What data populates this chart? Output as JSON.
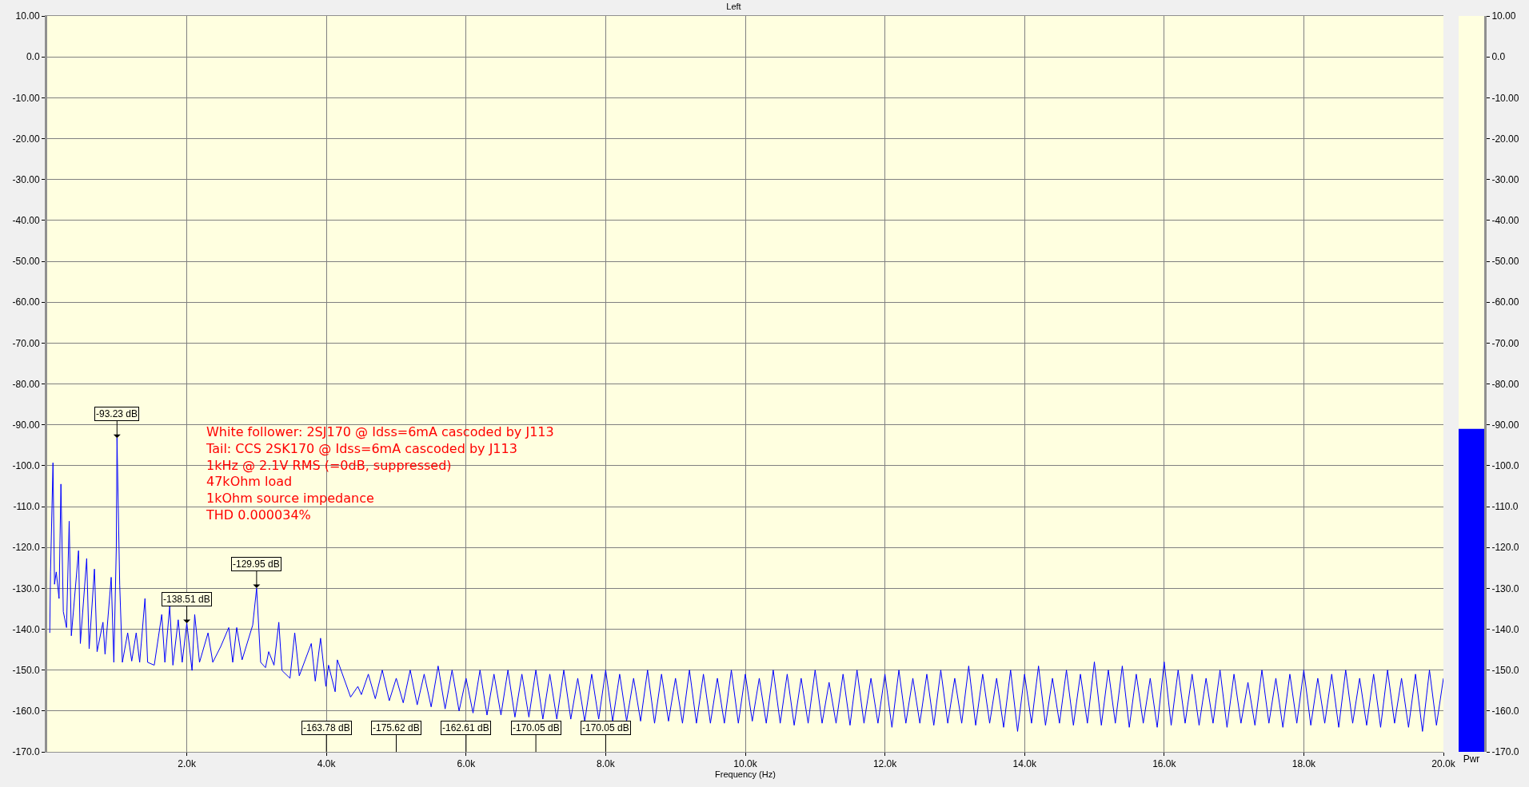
{
  "chart_data": [
    {
      "type": "line",
      "title": "Left",
      "xlabel": "Frequency (Hz)",
      "grid": true,
      "xlim": [
        0,
        20000
      ],
      "xticks": [
        {
          "value": 2000,
          "label": "2.0k"
        },
        {
          "value": 4000,
          "label": "4.0k"
        },
        {
          "value": 6000,
          "label": "6.0k"
        },
        {
          "value": 8000,
          "label": "8.0k"
        },
        {
          "value": 10000,
          "label": "10.0k"
        },
        {
          "value": 12000,
          "label": "12.0k"
        },
        {
          "value": 14000,
          "label": "14.0k"
        },
        {
          "value": 16000,
          "label": "16.0k"
        },
        {
          "value": 18000,
          "label": "18.0k"
        },
        {
          "value": 20000,
          "label": "20.0k"
        }
      ],
      "ylim": [
        -170,
        10
      ],
      "yticks": [
        {
          "value": 10,
          "label": "10.00"
        },
        {
          "value": 0,
          "label": "0.0"
        },
        {
          "value": -10,
          "label": "-10.00"
        },
        {
          "value": -20,
          "label": "-20.00"
        },
        {
          "value": -30,
          "label": "-30.00"
        },
        {
          "value": -40,
          "label": "-40.00"
        },
        {
          "value": -50,
          "label": "-50.00"
        },
        {
          "value": -60,
          "label": "-60.00"
        },
        {
          "value": -70,
          "label": "-70.00"
        },
        {
          "value": -80,
          "label": "-80.00"
        },
        {
          "value": -90,
          "label": "-90.00"
        },
        {
          "value": -100,
          "label": "-100.0"
        },
        {
          "value": -110,
          "label": "-110.0"
        },
        {
          "value": -120,
          "label": "-120.0"
        },
        {
          "value": -130,
          "label": "-130.0"
        },
        {
          "value": -140,
          "label": "-140.0"
        },
        {
          "value": -150,
          "label": "-150.0"
        },
        {
          "value": -160,
          "label": "-160.0"
        },
        {
          "value": -170,
          "label": "-170.0"
        }
      ],
      "annotations": [
        "White follower: 2SJ170 @ Idss=6mA cascoded by J113\nTail: CCS 2SK170 @ Idss=6mA cascoded by J113\n1kHz @ 2.1V RMS (=0dB, suppressed)\n47kOhm load\n1kOhm source impedance\nTHD 0.000034%",
        {
          "text": "-93.23 dB",
          "x": 1000,
          "y": -93.23
        },
        {
          "text": "-138.51 dB",
          "x": 2000,
          "y": -138.51
        },
        {
          "text": "-129.95 dB",
          "x": 3000,
          "y": -129.95
        },
        {
          "text": "-163.78 dB",
          "x": 4000
        },
        {
          "text": "-175.62 dB",
          "x": 5000
        },
        {
          "text": "-162.61 dB",
          "x": 6000
        },
        {
          "text": "-170.05 dB",
          "x": 7000
        },
        {
          "text": "-170.05 dB",
          "x": 8000
        }
      ],
      "series": [
        {
          "color": "#0000ff",
          "x": [
            37,
            48,
            83,
            105,
            130,
            170,
            197,
            231,
            277,
            315,
            346,
            449,
            475,
            566,
            601,
            677,
            715,
            799,
            829,
            917,
            955,
            990,
            1000,
            1039,
            1077,
            1153,
            1211,
            1275,
            1325,
            1401,
            1439,
            1534,
            1641,
            1686,
            1755,
            1801,
            1877,
            1934,
            2000,
            2075,
            2113,
            2182,
            2304,
            2372,
            2487,
            2601,
            2658,
            2715,
            2792,
            2944,
            3000,
            3058,
            3127,
            3173,
            3249,
            3318,
            3363,
            3478,
            3546,
            3611,
            3783,
            3840,
            3916,
            3992,
            4030,
            4125,
            4156,
            4346,
            4450,
            4500,
            4600,
            4700,
            4800,
            4900,
            5000,
            5100,
            5200,
            5300,
            5400,
            5500,
            5600,
            5700,
            5800,
            5900,
            6000,
            6100,
            6200,
            6300,
            6400,
            6500,
            6600,
            6700,
            6800,
            6900,
            7000,
            7100,
            7200,
            7300,
            7400,
            7500,
            7600,
            7700,
            7800,
            7900,
            8000,
            8100,
            8200,
            8300,
            8400,
            8500,
            8600,
            8700,
            8800,
            8900,
            9000,
            9100,
            9200,
            9300,
            9400,
            9500,
            9600,
            9700,
            9800,
            9900,
            10000,
            10100,
            10200,
            10300,
            10400,
            10500,
            10600,
            10700,
            10800,
            10900,
            11000,
            11100,
            11200,
            11300,
            11400,
            11500,
            11600,
            11700,
            11800,
            11900,
            12000,
            12100,
            12200,
            12300,
            12400,
            12500,
            12600,
            12700,
            12800,
            12900,
            13000,
            13100,
            13200,
            13300,
            13400,
            13500,
            13600,
            13700,
            13800,
            13900,
            14000,
            14100,
            14200,
            14300,
            14400,
            14500,
            14600,
            14700,
            14800,
            14900,
            15000,
            15100,
            15200,
            15300,
            15400,
            15500,
            15600,
            15700,
            15800,
            15900,
            16000,
            16100,
            16200,
            16300,
            16400,
            16500,
            16600,
            16700,
            16800,
            16900,
            17000,
            17100,
            17200,
            17300,
            17400,
            17500,
            17600,
            17700,
            17800,
            17900,
            18000,
            18100,
            18200,
            18300,
            18400,
            18500,
            18600,
            18700,
            18800,
            18900,
            19000,
            19100,
            19200,
            19300,
            19400,
            19500,
            19600,
            19700,
            19800,
            19900,
            20000
          ],
          "values": [
            -140.9,
            -126,
            -99.3,
            -129,
            -126,
            -132.5,
            -104.5,
            -135.7,
            -139.6,
            -113.6,
            -141.6,
            -120.8,
            -143.5,
            -122.7,
            -144.8,
            -125.3,
            -145.5,
            -138.3,
            -146.1,
            -127.3,
            -148.1,
            -120.1,
            -93.2,
            -129.2,
            -148.1,
            -140.9,
            -147.8,
            -140.9,
            -148.1,
            -132.5,
            -148.1,
            -148.8,
            -136.4,
            -148.1,
            -134.4,
            -148.8,
            -137.7,
            -148.1,
            -138.5,
            -150.1,
            -136.4,
            -148.1,
            -140.9,
            -148.1,
            -144.2,
            -139.6,
            -148.1,
            -139.6,
            -147.5,
            -139,
            -130,
            -148.1,
            -149.4,
            -145.5,
            -148.8,
            -138.3,
            -150.1,
            -152,
            -140.9,
            -151.4,
            -143.5,
            -152.7,
            -142.2,
            -154,
            -148.8,
            -155.3,
            -147.5,
            -156.6,
            -154,
            -156,
            -151,
            -157,
            -150,
            -157.5,
            -152,
            -158,
            -150,
            -158.5,
            -151,
            -159,
            -149,
            -159.5,
            -150,
            -160,
            -152,
            -160.5,
            -150,
            -161,
            -151,
            -161,
            -150,
            -161.5,
            -151,
            -161.5,
            -150,
            -162,
            -151,
            -162,
            -150,
            -162,
            -152,
            -162.5,
            -151,
            -162,
            -150,
            -162.5,
            -151,
            -162.5,
            -152,
            -162.5,
            -150,
            -163,
            -151,
            -162.5,
            -152,
            -163,
            -150,
            -163,
            -151,
            -163,
            -152,
            -163,
            -150,
            -163,
            -151,
            -162.5,
            -152,
            -163,
            -150,
            -163,
            -151,
            -163.5,
            -152,
            -163,
            -150,
            -163,
            -153,
            -163,
            -151,
            -163.5,
            -150,
            -163,
            -152,
            -163,
            -151,
            -164,
            -150,
            -163,
            -152,
            -163,
            -151,
            -163.5,
            -150,
            -163,
            -152,
            -163,
            -149,
            -163.5,
            -151,
            -163,
            -152,
            -164,
            -150,
            -165,
            -151,
            -163,
            -149,
            -163.5,
            -152,
            -163,
            -150,
            -163.5,
            -151,
            -163,
            -148,
            -163.5,
            -150,
            -163,
            -149,
            -164,
            -151,
            -163,
            -152,
            -164,
            -148,
            -163.5,
            -150,
            -163,
            -151,
            -163.5,
            -152,
            -163,
            -150,
            -164,
            -151,
            -163,
            -153,
            -163.5,
            -150,
            -163,
            -152,
            -164,
            -151,
            -163,
            -150,
            -163.5,
            -152,
            -163,
            -151,
            -164,
            -150,
            -163,
            -152,
            -163.5,
            -151,
            -164,
            -150,
            -163,
            -152,
            -164,
            -151,
            -165,
            -150,
            -163.5,
            -152
          ]
        }
      ]
    },
    {
      "type": "bar",
      "categories": [
        "Pwr"
      ],
      "base": [
        -170
      ],
      "values": [
        79
      ],
      "color": "#0000ff",
      "ylim": [
        -170,
        10
      ],
      "yticks": [
        {
          "value": 10,
          "label": "10.00"
        },
        {
          "value": 0,
          "label": "0.0"
        },
        {
          "value": -10,
          "label": "-10.00"
        },
        {
          "value": -20,
          "label": "-20.00"
        },
        {
          "value": -30,
          "label": "-30.00"
        },
        {
          "value": -40,
          "label": "-40.00"
        },
        {
          "value": -50,
          "label": "-50.00"
        },
        {
          "value": -60,
          "label": "-60.00"
        },
        {
          "value": -70,
          "label": "-70.00"
        },
        {
          "value": -80,
          "label": "-80.00"
        },
        {
          "value": -90,
          "label": "-90.00"
        },
        {
          "value": -100,
          "label": "-100.0"
        },
        {
          "value": -110,
          "label": "-110.0"
        },
        {
          "value": -120,
          "label": "-120.0"
        },
        {
          "value": -130,
          "label": "-130.0"
        },
        {
          "value": -140,
          "label": "-140.0"
        },
        {
          "value": -150,
          "label": "-150.0"
        },
        {
          "value": -160,
          "label": "-160.0"
        },
        {
          "value": -170,
          "label": "-170.0"
        }
      ]
    }
  ]
}
